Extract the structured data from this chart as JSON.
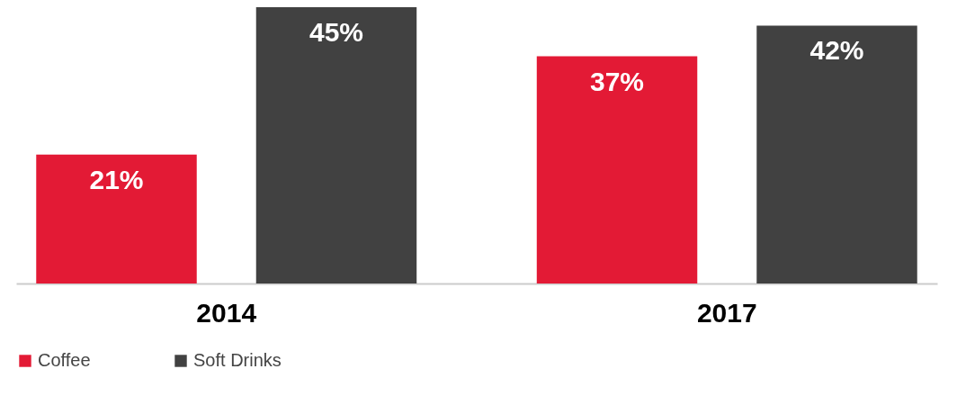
{
  "chart_data": {
    "type": "bar",
    "categories": [
      "2014",
      "2017"
    ],
    "series": [
      {
        "name": "Coffee",
        "color": "#e31a35",
        "values": [
          21,
          37
        ],
        "value_labels": [
          "21%",
          "37%"
        ]
      },
      {
        "name": "Soft Drinks",
        "color": "#414141",
        "values": [
          45,
          42
        ],
        "value_labels": [
          "45%",
          "42%"
        ]
      }
    ],
    "legend": "bottom",
    "grid": false
  }
}
